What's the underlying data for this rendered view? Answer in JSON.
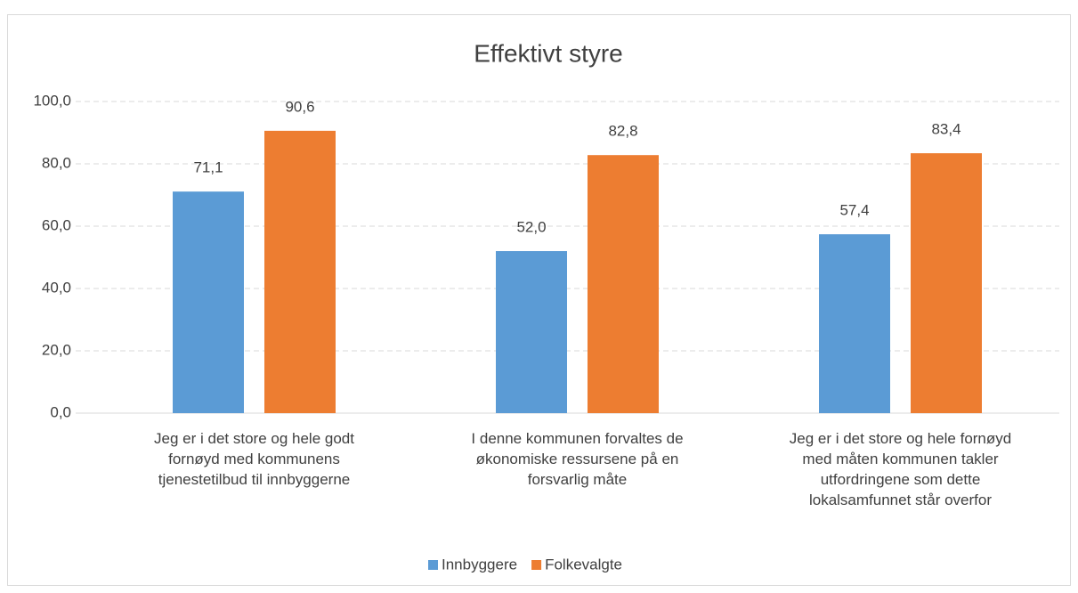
{
  "chart_data": {
    "type": "bar",
    "title": "Effektivt styre",
    "categories": [
      "Jeg er i det store og hele godt\nfornøyd med kommunens\ntjenestetilbud til innbyggerne",
      "I denne kommunen forvaltes de\nøkonomiske ressursene på en\nforsvarlig måte",
      "Jeg er i det store og hele fornøyd\nmed måten kommunen takler\nutfordringene som dette\nlokalsamfunnet står overfor"
    ],
    "series": [
      {
        "name": "Innbyggere",
        "color": "#5b9bd5",
        "values": [
          71.1,
          52.0,
          57.4
        ],
        "value_labels": [
          "71,1",
          "52,0",
          "57,4"
        ]
      },
      {
        "name": "Folkevalgte",
        "color": "#ed7d31",
        "values": [
          90.6,
          82.8,
          83.4
        ],
        "value_labels": [
          "90,6",
          "82,8",
          "83,4"
        ]
      }
    ],
    "ylim": [
      0,
      100
    ],
    "yticks": [
      {
        "value": 0,
        "label": "0,0"
      },
      {
        "value": 20,
        "label": "20,0"
      },
      {
        "value": 40,
        "label": "40,0"
      },
      {
        "value": 60,
        "label": "60,0"
      },
      {
        "value": 80,
        "label": "80,0"
      },
      {
        "value": 100,
        "label": "100,0"
      }
    ],
    "grid": true,
    "legend": "bottom"
  }
}
